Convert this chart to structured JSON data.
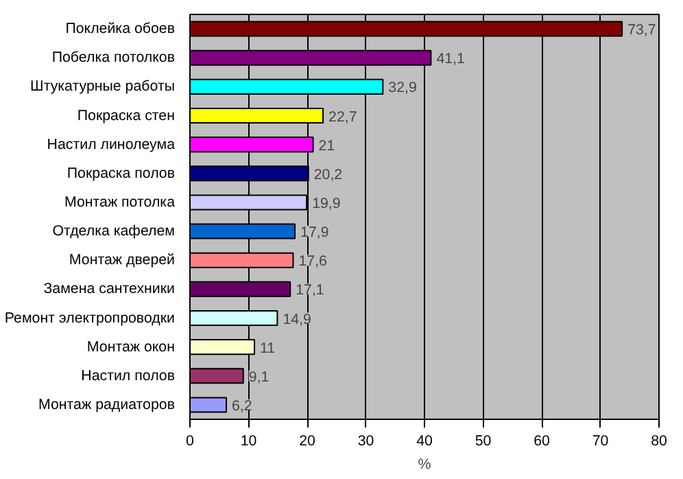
{
  "chart_data": {
    "type": "bar",
    "orientation": "horizontal",
    "xlabel": "%",
    "categories": [
      "Поклейка обоев",
      "Побелка потолков",
      "Штукатурные работы",
      "Покраска стен",
      "Настил линолеума",
      "Покраска полов",
      "Монтаж потолка",
      "Отделка кафелем",
      "Монтаж дверей",
      "Замена сантехники",
      "Ремонт электропроводки",
      "Монтаж окон",
      "Настил полов",
      "Монтаж радиаторов"
    ],
    "values": [
      73.7,
      41.1,
      32.9,
      22.7,
      21,
      20.2,
      19.9,
      17.9,
      17.6,
      17.1,
      14.9,
      11,
      9.1,
      6.2
    ],
    "value_labels": [
      "73,7",
      "41,1",
      "32,9",
      "22,7",
      "21",
      "20,2",
      "19,9",
      "17,9",
      "17,6",
      "17,1",
      "14,9",
      "11",
      "9,1",
      "6,2"
    ],
    "colors": [
      "#800000",
      "#800080",
      "#00ffff",
      "#ffff00",
      "#ff00ff",
      "#000080",
      "#ccccff",
      "#0066cc",
      "#ff8080",
      "#660066",
      "#ccffff",
      "#ffffcc",
      "#993366",
      "#9999ff"
    ],
    "xlim": [
      0,
      80
    ],
    "xticks": [
      0,
      10,
      20,
      30,
      40,
      50,
      60,
      70,
      80
    ],
    "grid": "x"
  }
}
